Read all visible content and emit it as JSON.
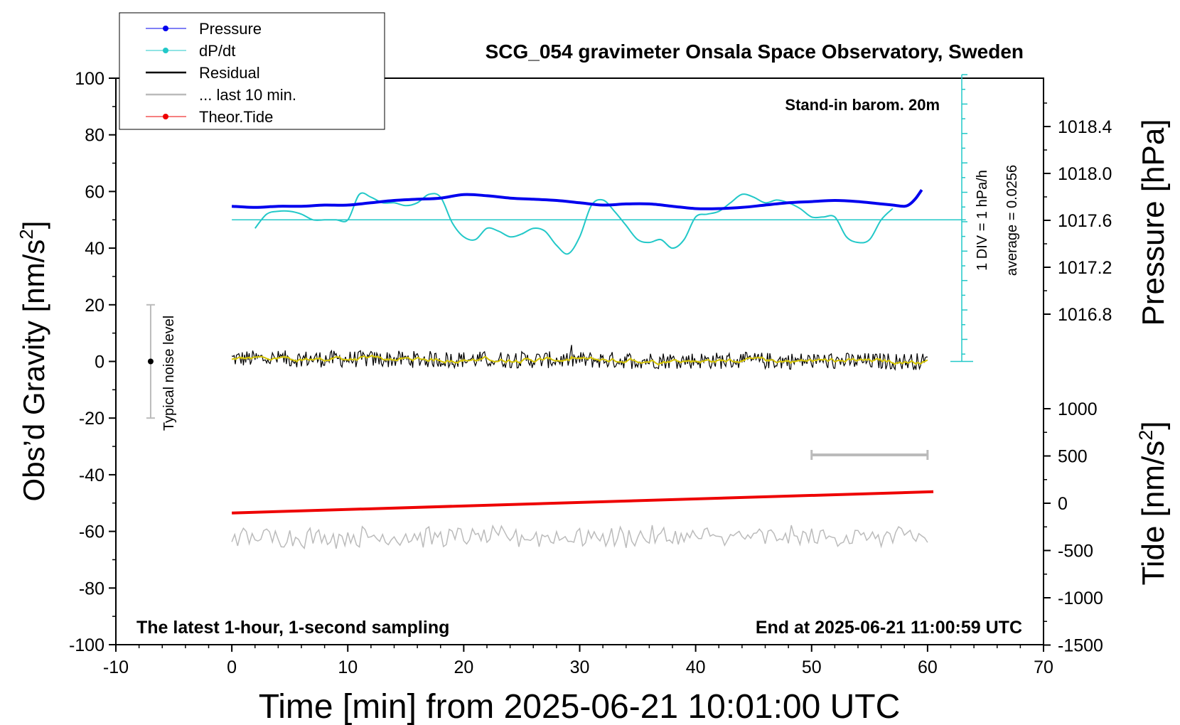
{
  "chart_data": {
    "type": "line",
    "title": "SCG_054 gravimeter Onsala Space Observatory, Sweden",
    "xlabel": "Time [min] from 2025-06-21 10:01:00 UTC",
    "ylabel_left": "Obs’d Gravity [nm/s",
    "ylabel_left_sup": "2",
    "ylabel_left_end": "]",
    "ylabel_right_pressure": "Pressure [hPa]",
    "ylabel_right_tide": "Tide [nm/s",
    "ylabel_right_tide_sup": "2",
    "ylabel_right_tide_end": "]",
    "xlim": [
      -10,
      70
    ],
    "ylim_left": [
      -100,
      100
    ],
    "x_ticks": [
      "-10",
      "0",
      "10",
      "20",
      "30",
      "40",
      "50",
      "60",
      "70"
    ],
    "y_ticks_left": [
      "100",
      "80",
      "60",
      "40",
      "20",
      "0",
      "-20",
      "-40",
      "-60",
      "-80",
      "-100"
    ],
    "pressure_axis": {
      "ticks": [
        "1018.4",
        "1018.0",
        "1017.6",
        "1017.2",
        "1016.8"
      ],
      "tick_values": [
        1018.4,
        1018.0,
        1017.6,
        1017.2,
        1016.8
      ]
    },
    "tide_axis": {
      "ticks": [
        "1000",
        "500",
        "0",
        "-500",
        "-1000",
        "-1500"
      ],
      "tick_values": [
        1000,
        500,
        0,
        -500,
        -1000,
        -1500
      ]
    },
    "legend": [
      {
        "label": "Pressure",
        "color": "#0000ee",
        "style": "line-dot"
      },
      {
        "label": "dP/dt",
        "color": "#22c8c8",
        "style": "line-dot"
      },
      {
        "label": "Residual",
        "color": "#000000",
        "style": "line"
      },
      {
        "label": "... last 10 min.",
        "color": "#bbbbbb",
        "style": "line"
      },
      {
        "label": "Theor.Tide",
        "color": "#ee0000",
        "style": "line-dot"
      }
    ],
    "annotations": {
      "barometer": "Stand-in barom. 20m",
      "dpdt_scale": "1 DIV = 1 hPa/h",
      "dpdt_average": "average = 0.0256",
      "noise": "Typical noise level",
      "bottom_left": "The latest 1-hour, 1-second sampling",
      "bottom_right": "End at 2025-06-21 11:00:59 UTC"
    },
    "series": [
      {
        "name": "Pressure",
        "units": "hPa",
        "color": "#0000ee",
        "x": [
          0,
          2,
          4,
          6,
          8,
          10,
          12,
          14,
          16,
          18,
          20,
          22,
          24,
          26,
          28,
          30,
          32,
          34,
          36,
          38,
          40,
          42,
          44,
          46,
          48,
          50,
          52,
          54,
          56,
          57,
          58,
          58.5,
          59,
          59.5
        ],
        "values": [
          1017.72,
          1017.71,
          1017.72,
          1017.72,
          1017.73,
          1017.73,
          1017.75,
          1017.77,
          1017.78,
          1017.79,
          1017.82,
          1017.81,
          1017.79,
          1017.78,
          1017.77,
          1017.75,
          1017.73,
          1017.74,
          1017.74,
          1017.72,
          1017.7,
          1017.7,
          1017.71,
          1017.73,
          1017.75,
          1017.76,
          1017.77,
          1017.76,
          1017.74,
          1017.73,
          1017.72,
          1017.74,
          1017.79,
          1017.86
        ]
      },
      {
        "name": "dP/dt",
        "units": "nm/s2 (plotted)",
        "color": "#22c8c8",
        "x": [
          2,
          3,
          4,
          5,
          6,
          7,
          8,
          9,
          10,
          11,
          12,
          13,
          14,
          15,
          16,
          17,
          18,
          19,
          20,
          21,
          22,
          23,
          24,
          25,
          26,
          27,
          28,
          29,
          30,
          31,
          32,
          33,
          34,
          35,
          36,
          37,
          38,
          39,
          40,
          41,
          42,
          43,
          44,
          45,
          46,
          47,
          48,
          49,
          50,
          51,
          52,
          53,
          54,
          55,
          56,
          57
        ],
        "values": [
          47,
          52,
          53,
          53,
          52,
          50,
          50,
          50,
          50,
          59,
          58,
          56,
          56,
          55,
          56,
          59,
          58,
          49,
          44,
          43,
          47,
          46,
          44,
          45,
          47,
          46,
          41,
          38,
          44,
          55,
          57,
          53,
          48,
          43,
          42,
          43,
          40,
          43,
          51,
          52,
          53,
          56,
          59,
          58,
          56,
          57,
          56,
          54,
          51,
          51,
          51,
          44,
          42,
          43,
          50,
          54
        ]
      },
      {
        "name": "Residual",
        "units": "nm/s2",
        "color": "#000000",
        "x": [
          0,
          60
        ],
        "values": [
          1,
          0
        ],
        "noise_amplitude": 3,
        "smoothed_color": "#d4c400"
      },
      {
        "name": "... last 10 min.",
        "units": "nm/s2 (offset -62)",
        "color": "#bbbbbb",
        "x": [
          0,
          60
        ],
        "values": [
          -62,
          -62
        ],
        "noise_amplitude": 3
      },
      {
        "name": "Theor.Tide",
        "units": "nm/s2",
        "color": "#ee0000",
        "x": [
          0,
          60
        ],
        "values": [
          -53.5,
          -46
        ]
      }
    ],
    "dpdt_reference_line": 50,
    "scale_bar_10min": {
      "x_start": 50,
      "x_end": 60,
      "y": -33
    },
    "noise_bar": {
      "x": -7,
      "y_center": 0,
      "y_min": -20,
      "y_max": 20
    }
  }
}
